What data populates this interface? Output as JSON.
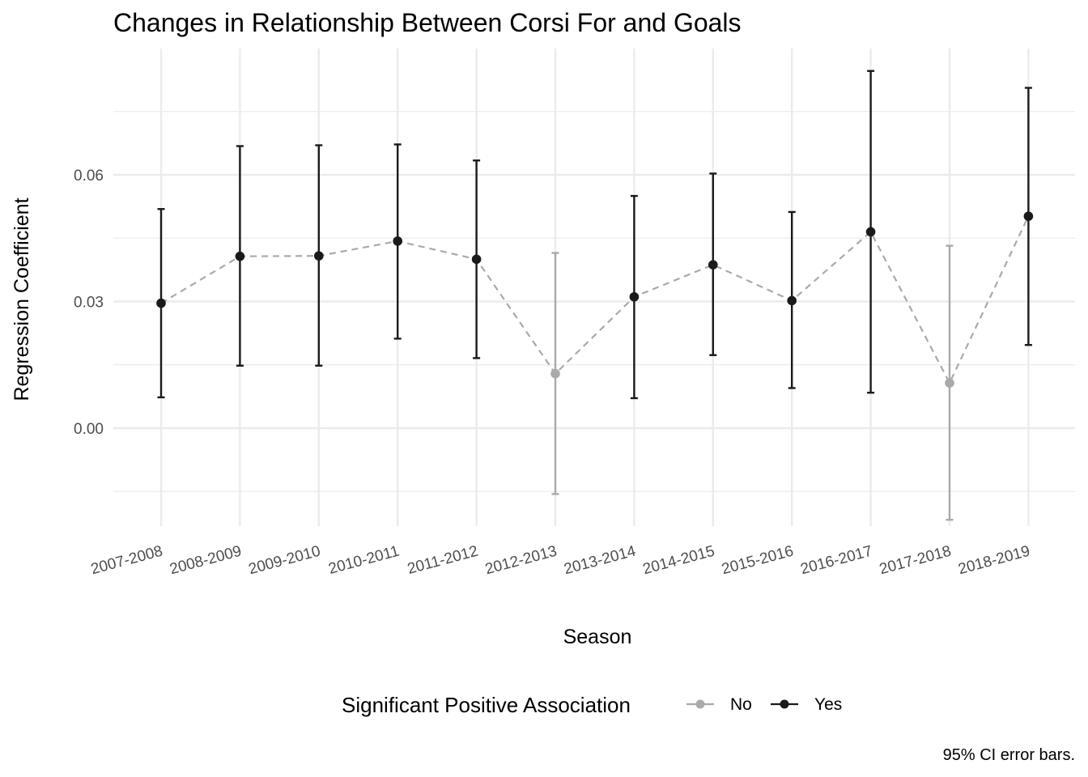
{
  "chart_data": {
    "type": "scatter",
    "title": "Changes in Relationship Between Corsi For and Goals",
    "xlabel": "Season",
    "ylabel": "Regression Coefficient",
    "caption": "95% CI error bars.",
    "ylim": [
      -0.0225,
      0.09
    ],
    "yticks": [
      0.0,
      0.03,
      0.06
    ],
    "ytick_labels": [
      "0.00",
      "0.03",
      "0.06"
    ],
    "grid": true,
    "categories": [
      "2007-2008",
      "2008-2009",
      "2009-2010",
      "2010-2011",
      "2011-2012",
      "2012-2013",
      "2013-2014",
      "2014-2015",
      "2015-2016",
      "2016-2017",
      "2017-2018",
      "2018-2019"
    ],
    "estimate": [
      0.0296,
      0.0407,
      0.0408,
      0.0443,
      0.04,
      0.0129,
      0.0311,
      0.0387,
      0.0302,
      0.0465,
      0.0107,
      0.0502
    ],
    "ci_low": [
      0.0073,
      0.0148,
      0.0148,
      0.0212,
      0.0166,
      -0.0156,
      0.0071,
      0.0173,
      0.0095,
      0.0084,
      -0.0217,
      0.0197
    ],
    "ci_high": [
      0.0519,
      0.0668,
      0.067,
      0.0672,
      0.0634,
      0.0415,
      0.055,
      0.0603,
      0.0512,
      0.0846,
      0.0432,
      0.0806
    ],
    "significant": [
      "Yes",
      "Yes",
      "Yes",
      "Yes",
      "Yes",
      "No",
      "Yes",
      "Yes",
      "Yes",
      "Yes",
      "No",
      "Yes"
    ],
    "legend": {
      "title": "Significant Positive Association",
      "position": "bottom",
      "entries": [
        {
          "label": "No",
          "color": "#aaaaaa"
        },
        {
          "label": "Yes",
          "color": "#1a1a1a"
        }
      ]
    },
    "colors": {
      "No": "#aaaaaa",
      "Yes": "#1a1a1a",
      "connector": "#aaaaaa",
      "grid": "#ebebeb"
    }
  }
}
